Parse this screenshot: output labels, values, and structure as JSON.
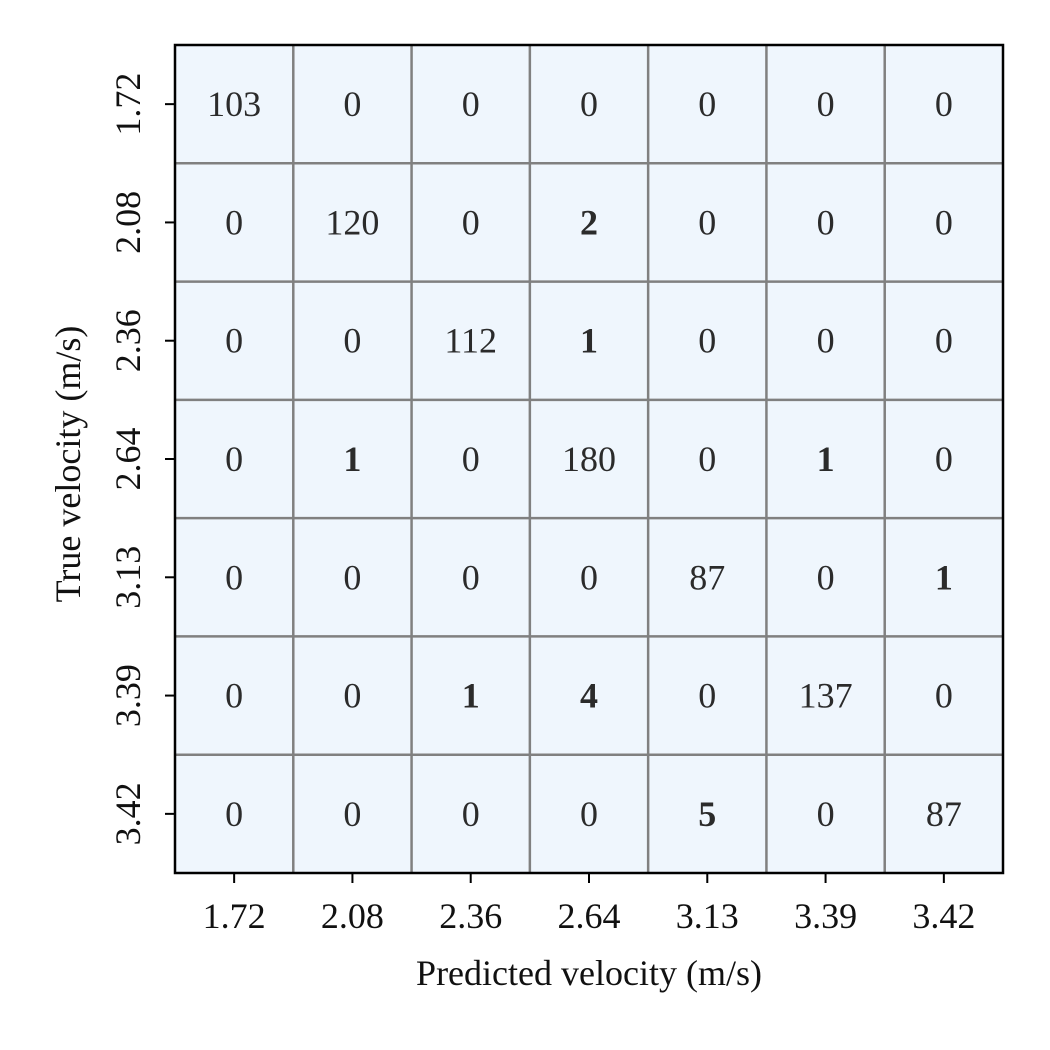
{
  "chart_data": {
    "type": "heatmap",
    "xlabel": "Predicted velocity (m/s)",
    "ylabel": "True velocity (m/s)",
    "x_categories": [
      "1.72",
      "2.08",
      "2.36",
      "2.64",
      "3.13",
      "3.39",
      "3.42"
    ],
    "y_categories": [
      "1.72",
      "2.08",
      "2.36",
      "2.64",
      "3.13",
      "3.39",
      "3.42"
    ],
    "values": [
      [
        103,
        0,
        0,
        0,
        0,
        0,
        0
      ],
      [
        0,
        120,
        0,
        2,
        0,
        0,
        0
      ],
      [
        0,
        0,
        112,
        1,
        0,
        0,
        0
      ],
      [
        0,
        1,
        0,
        180,
        0,
        1,
        0
      ],
      [
        0,
        0,
        0,
        0,
        87,
        0,
        1
      ],
      [
        0,
        0,
        1,
        4,
        0,
        137,
        0
      ],
      [
        0,
        0,
        0,
        0,
        5,
        0,
        87
      ]
    ],
    "bold_rule": "off-diagonal non-zero values shown in bold",
    "cell_color": "#eff6fd",
    "grid_color": "#808080",
    "border_color": "#000000",
    "grid": true
  }
}
